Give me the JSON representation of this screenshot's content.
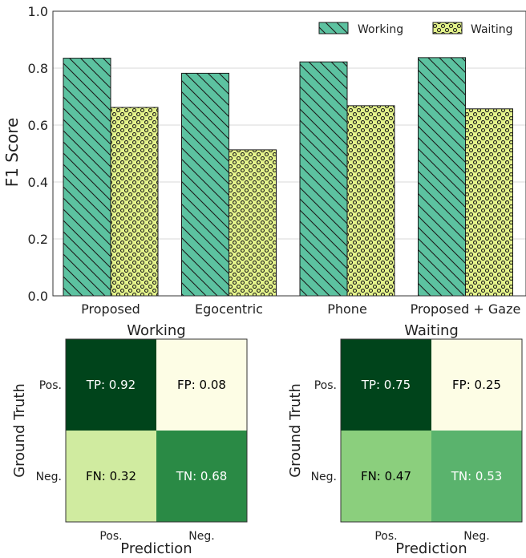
{
  "chart_data": [
    {
      "type": "bar",
      "ylabel": "F1 Score",
      "categories": [
        "Proposed",
        "Egocentric",
        "Phone",
        "Proposed + Gaze"
      ],
      "ylim": [
        0,
        1.0
      ],
      "yticks": [
        "0.0",
        "0.2",
        "0.4",
        "0.6",
        "0.8",
        "1.0"
      ],
      "grid": true,
      "legend": "top-right",
      "series": [
        {
          "name": "Working",
          "values": [
            0.835,
            0.782,
            0.822,
            0.837
          ],
          "color": "#5cc2a0",
          "pattern": "diagonal-hatch"
        },
        {
          "name": "Waiting",
          "values": [
            0.662,
            0.513,
            0.668,
            0.657
          ],
          "color": "#e3f28a",
          "pattern": "dots"
        }
      ]
    },
    {
      "type": "heatmap",
      "title": "Working",
      "xlabel": "Prediction",
      "ylabel": "Ground Truth",
      "x_ticks": [
        "Pos.",
        "Neg."
      ],
      "y_ticks": [
        "Pos.",
        "Neg."
      ],
      "cells": [
        {
          "label": "TP",
          "value": 0.92,
          "text": "TP: 0.92",
          "color": "#00441b",
          "text_color": "#ffffff"
        },
        {
          "label": "FP",
          "value": 0.08,
          "text": "FP: 0.08",
          "color": "#fdfde5",
          "text_color": "#000000"
        },
        {
          "label": "FN",
          "value": 0.32,
          "text": "FN: 0.32",
          "color": "#d0eba0",
          "text_color": "#000000"
        },
        {
          "label": "TN",
          "value": 0.68,
          "text": "TN: 0.68",
          "color": "#2a8a45",
          "text_color": "#ffffff"
        }
      ]
    },
    {
      "type": "heatmap",
      "title": "Waiting",
      "xlabel": "Prediction",
      "ylabel": "Ground Truth",
      "x_ticks": [
        "Pos.",
        "Neg."
      ],
      "y_ticks": [
        "Pos.",
        "Neg."
      ],
      "cells": [
        {
          "label": "TP",
          "value": 0.75,
          "text": "TP: 0.75",
          "color": "#00441b",
          "text_color": "#ffffff"
        },
        {
          "label": "FP",
          "value": 0.25,
          "text": "FP: 0.25",
          "color": "#fdfde5",
          "text_color": "#000000"
        },
        {
          "label": "FN",
          "value": 0.47,
          "text": "FN: 0.47",
          "color": "#8bcf7d",
          "text_color": "#000000"
        },
        {
          "label": "TN",
          "value": 0.53,
          "text": "TN: 0.53",
          "color": "#5ab36d",
          "text_color": "#ffffff"
        }
      ]
    }
  ]
}
